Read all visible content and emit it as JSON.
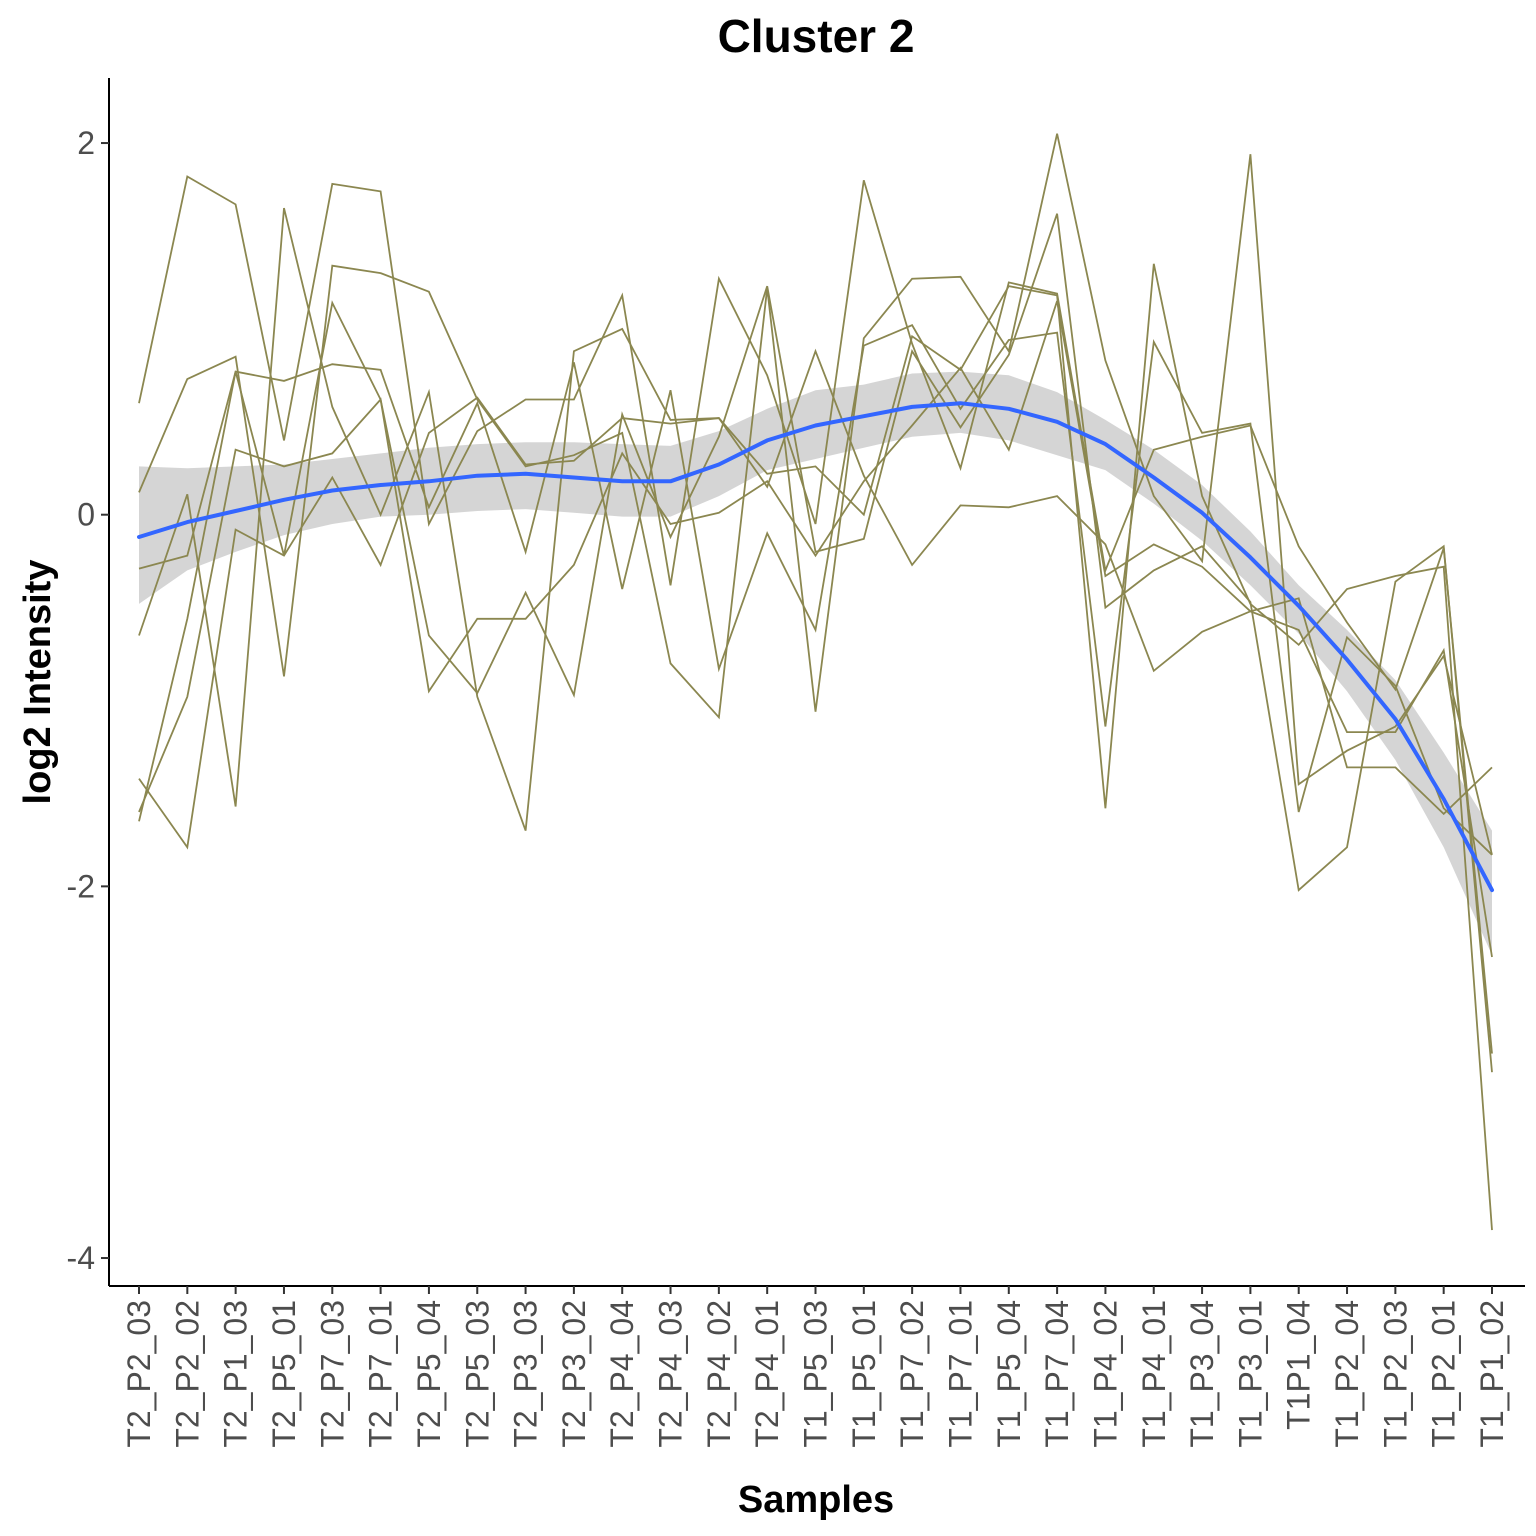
{
  "chart_data": {
    "type": "line",
    "title": "Cluster 2",
    "xlabel": "Samples",
    "ylabel": "log2 Intensity",
    "ylim": [
      -4.15,
      2.35
    ],
    "yticks": [
      2,
      0,
      -2,
      -4
    ],
    "ytick_labels": [
      "2",
      "0",
      "-2",
      "-4"
    ],
    "grid": false,
    "legend": "none",
    "categories": [
      "T2_P2_03",
      "T2_P2_02",
      "T2_P1_03",
      "T2_P5_01",
      "T2_P7_03",
      "T2_P7_01",
      "T2_P5_04",
      "T2_P5_03",
      "T2_P3_03",
      "T2_P3_02",
      "T2_P4_04",
      "T2_P4_03",
      "T2_P4_02",
      "T2_P4_01",
      "T1_P5_03",
      "T1_P5_01",
      "T1_P7_02",
      "T1_P7_01",
      "T1_P5_04",
      "T1_P7_04",
      "T1_P4_02",
      "T1_P4_01",
      "T1_P3_04",
      "T1_P3_01",
      "T1P1_04",
      "T1_P2_04",
      "T1_P2_03",
      "T1_P2_01",
      "T1_P1_02"
    ],
    "series_color": "#8B8750",
    "trend_color": "#3366FF",
    "ribbon_color": "#d3d3d3",
    "series": [
      {
        "values": [
          0.6,
          1.82,
          1.67,
          0.4,
          1.78,
          1.74,
          -0.05,
          0.45,
          0.62,
          0.62,
          1.18,
          -0.38,
          1.27,
          0.75,
          -0.05,
          1.8,
          0.92,
          0.25,
          1.25,
          1.19,
          -0.3,
          0.35,
          0.42,
          0.48,
          -0.17,
          -0.58,
          -0.94,
          -0.18,
          -2.9
        ]
      },
      {
        "values": [
          0.12,
          0.73,
          0.85,
          -0.87,
          1.34,
          1.3,
          1.2,
          0.62,
          0.26,
          0.32,
          0.44,
          -0.8,
          -1.09,
          1.22,
          -1.06,
          0.95,
          1.27,
          1.28,
          0.88,
          2.05,
          0.83,
          0.1,
          -0.25,
          1.94,
          -1.45,
          -1.27,
          -1.14,
          -0.76,
          -1.83
        ]
      },
      {
        "values": [
          -0.29,
          -0.22,
          0.77,
          0.72,
          0.81,
          0.78,
          0.04,
          0.6,
          -0.2,
          0.82,
          -0.4,
          0.67,
          -0.83,
          -0.1,
          -0.62,
          0.91,
          1.02,
          0.57,
          0.94,
          0.98,
          -1.14,
          0.93,
          0.44,
          0.49,
          -1.6,
          -0.66,
          -0.92,
          -1.58,
          -1.83
        ]
      },
      {
        "values": [
          -1.65,
          -0.56,
          0.77,
          -0.22,
          1.14,
          0.62,
          -0.65,
          -0.96,
          -0.42,
          -0.97,
          0.54,
          -0.12,
          0.42,
          1.23,
          -0.2,
          -0.13,
          0.88,
          0.47,
          0.86,
          1.62,
          -0.5,
          -0.3,
          -0.17,
          -0.47,
          -2.02,
          -1.79,
          -0.36,
          -0.17,
          -3.0
        ]
      },
      {
        "values": [
          -0.65,
          0.11,
          -1.57,
          1.65,
          0.58,
          0.0,
          0.66,
          -0.98,
          -1.7,
          0.88,
          1.0,
          0.51,
          0.52,
          0.22,
          0.26,
          0.0,
          0.96,
          0.78,
          1.23,
          1.18,
          -1.58,
          1.35,
          0.1,
          -0.48,
          -0.7,
          -0.4,
          -0.33,
          -0.28,
          -3.85
        ]
      },
      {
        "values": [
          -1.42,
          -1.79,
          -0.08,
          -0.22,
          0.2,
          -0.27,
          0.44,
          0.63,
          0.27,
          0.29,
          0.52,
          0.49,
          0.52,
          0.15,
          0.88,
          0.21,
          -0.27,
          0.05,
          0.04,
          0.1,
          -0.16,
          -0.84,
          -0.63,
          -0.52,
          -0.45,
          -1.36,
          -1.36,
          -1.61,
          -1.36
        ]
      },
      {
        "values": [
          -1.6,
          -0.98,
          0.35,
          0.26,
          0.33,
          0.62,
          -0.95,
          -0.56,
          -0.56,
          -0.27,
          0.33,
          -0.05,
          0.01,
          0.18,
          -0.22,
          0.18,
          0.48,
          0.79,
          0.35,
          1.15,
          -0.33,
          -0.16,
          -0.28,
          -0.52,
          -0.62,
          -1.17,
          -1.17,
          -0.73,
          -2.38
        ]
      }
    ],
    "trend": {
      "values": [
        -0.12,
        -0.04,
        0.02,
        0.08,
        0.13,
        0.16,
        0.18,
        0.21,
        0.22,
        0.2,
        0.18,
        0.18,
        0.27,
        0.4,
        0.48,
        0.53,
        0.58,
        0.6,
        0.57,
        0.5,
        0.38,
        0.2,
        0.01,
        -0.23,
        -0.49,
        -0.78,
        -1.1,
        -1.53,
        -2.02
      ]
    },
    "ribbon": {
      "upper": [
        0.26,
        0.25,
        0.26,
        0.27,
        0.3,
        0.33,
        0.36,
        0.38,
        0.39,
        0.39,
        0.38,
        0.37,
        0.45,
        0.57,
        0.67,
        0.7,
        0.76,
        0.77,
        0.75,
        0.66,
        0.51,
        0.35,
        0.16,
        -0.09,
        -0.38,
        -0.62,
        -0.89,
        -1.28,
        -1.7
      ],
      "lower": [
        -0.48,
        -0.3,
        -0.2,
        -0.11,
        -0.05,
        -0.01,
        0.0,
        0.02,
        0.03,
        0.01,
        -0.01,
        -0.01,
        0.1,
        0.24,
        0.3,
        0.36,
        0.42,
        0.44,
        0.4,
        0.32,
        0.24,
        0.06,
        -0.14,
        -0.38,
        -0.64,
        -0.95,
        -1.32,
        -1.79,
        -2.37
      ]
    }
  }
}
